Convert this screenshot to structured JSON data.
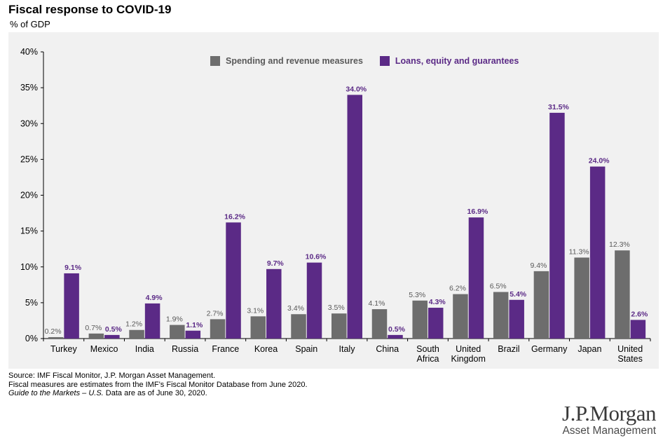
{
  "header": {
    "title": "Fiscal response to COVID-19",
    "subtitle": "% of GDP"
  },
  "legend": {
    "items": [
      {
        "label": "Spending and revenue measures",
        "color": "#6d6d6d"
      },
      {
        "label": "Loans, equity and guarantees",
        "color": "#5b2a86"
      }
    ]
  },
  "chart_data": {
    "type": "bar",
    "title": "Fiscal response to COVID-19",
    "ylabel": "% of GDP",
    "xlabel": "",
    "ylim": [
      0,
      40
    ],
    "yticks": [
      "0%",
      "5%",
      "10%",
      "15%",
      "20%",
      "25%",
      "30%",
      "35%",
      "40%"
    ],
    "grid": false,
    "legend_position": "top",
    "categories": [
      [
        "Turkey"
      ],
      [
        "Mexico"
      ],
      [
        "India"
      ],
      [
        "Russia"
      ],
      [
        "France"
      ],
      [
        "Korea"
      ],
      [
        "Spain"
      ],
      [
        "Italy"
      ],
      [
        "China"
      ],
      [
        "South",
        "Africa"
      ],
      [
        "United",
        "Kingdom"
      ],
      [
        "Brazil"
      ],
      [
        "Germany"
      ],
      [
        "Japan"
      ],
      [
        "United",
        "States"
      ]
    ],
    "series": [
      {
        "name": "Spending and revenue measures",
        "color": "#6d6d6d",
        "label_color": "#595959",
        "values": [
          0.2,
          0.7,
          1.2,
          1.9,
          2.7,
          3.1,
          3.4,
          3.5,
          4.1,
          5.3,
          6.2,
          6.5,
          9.4,
          11.3,
          12.3
        ],
        "labels": [
          "0.2%",
          "0.7%",
          "1.2%",
          "1.9%",
          "2.7%",
          "3.1%",
          "3.4%",
          "3.5%",
          "4.1%",
          "5.3%",
          "6.2%",
          "6.5%",
          "9.4%",
          "11.3%",
          "12.3%"
        ]
      },
      {
        "name": "Loans, equity and guarantees",
        "color": "#5b2a86",
        "label_color": "#5b2a86",
        "values": [
          9.1,
          0.5,
          4.9,
          1.1,
          16.2,
          9.7,
          10.6,
          34.0,
          0.5,
          4.3,
          16.9,
          5.4,
          31.5,
          24.0,
          2.6
        ],
        "labels": [
          "9.1%",
          "0.5%",
          "4.9%",
          "1.1%",
          "16.2%",
          "9.7%",
          "10.6%",
          "34.0%",
          "0.5%",
          "4.3%",
          "16.9%",
          "5.4%",
          "31.5%",
          "24.0%",
          "2.6%"
        ]
      }
    ]
  },
  "footnotes": {
    "line1": "Source: IMF Fiscal Monitor, J.P. Morgan Asset Management.",
    "line2": "Fiscal measures are estimates from the IMF’s Fiscal Monitor Database from June 2020.",
    "line3_italic": "Guide to the Markets – U.S.",
    "line3_rest": " Data are as of June 30, 2020."
  },
  "logo": {
    "main": "J.P.Morgan",
    "sub": "Asset Management"
  }
}
